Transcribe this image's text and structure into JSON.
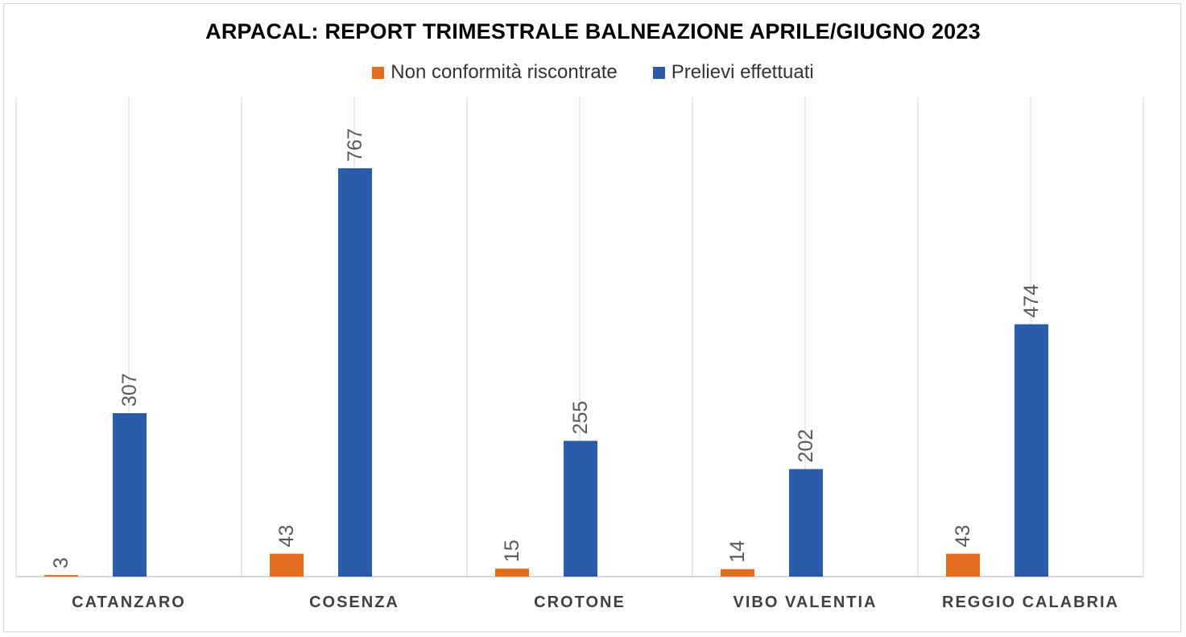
{
  "chart_data": {
    "type": "bar",
    "title": "ARPACAL: REPORT TRIMESTRALE BALNEAZIONE APRILE/GIUGNO 2023",
    "xlabel": "",
    "ylabel": "",
    "categories": [
      "CATANZARO",
      "COSENZA",
      "CROTONE",
      "VIBO VALENTIA",
      "REGGIO CALABRIA"
    ],
    "series": [
      {
        "name": "Non conformità riscontrate",
        "color": "#e46c1e",
        "values": [
          3,
          43,
          15,
          14,
          43
        ],
        "labels": [
          "3",
          "43",
          "15",
          "14",
          "43"
        ]
      },
      {
        "name": "Prelievi effettuati",
        "color": "#2a5caa",
        "values": [
          307,
          767,
          255,
          202,
          474
        ],
        "labels": [
          "307",
          "767",
          "255",
          "202",
          "474"
        ]
      }
    ],
    "ylim": [
      0,
      900
    ],
    "legend_position": "top",
    "grid": "vertical",
    "data_labels": "rotated"
  }
}
